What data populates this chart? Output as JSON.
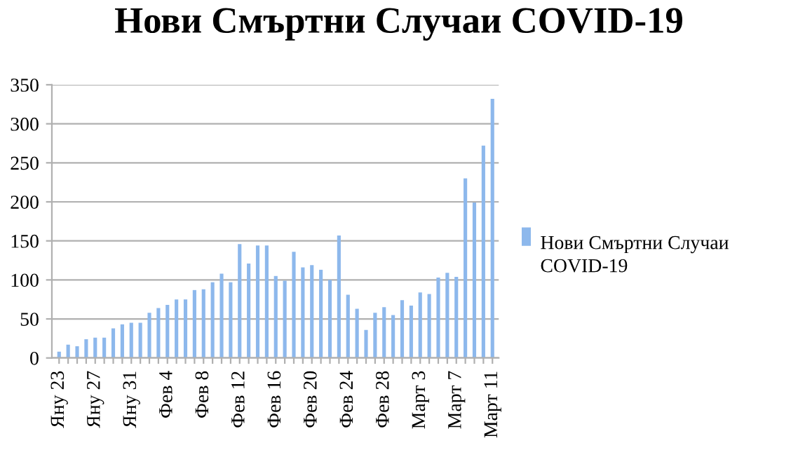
{
  "chart_data": {
    "type": "bar",
    "title": "Нови Смъртни Случаи COVID-19",
    "categories": [
      "Яну 23",
      null,
      null,
      null,
      "Яну 27",
      null,
      null,
      null,
      "Яну 31",
      null,
      null,
      null,
      "Фев 4",
      null,
      null,
      null,
      "Фев 8",
      null,
      null,
      null,
      "Фев 12",
      null,
      null,
      null,
      "Фев 16",
      null,
      null,
      null,
      "Фев 20",
      null,
      null,
      null,
      "Фев 24",
      null,
      null,
      null,
      "Фев 28",
      null,
      null,
      null,
      "Март 3",
      null,
      null,
      null,
      "Март 7",
      null,
      null,
      null,
      "Март 11"
    ],
    "series": [
      {
        "name": "Нови Смъртни Случаи COVID-19",
        "color": "#8db8ec",
        "values": [
          8,
          17,
          15,
          24,
          26,
          26,
          38,
          43,
          45,
          45,
          58,
          64,
          68,
          75,
          75,
          87,
          88,
          97,
          108,
          97,
          146,
          121,
          144,
          144,
          105,
          99,
          136,
          116,
          119,
          113,
          100,
          157,
          81,
          63,
          36,
          58,
          65,
          55,
          74,
          67,
          84,
          82,
          103,
          109,
          104,
          230,
          199,
          272,
          332
        ]
      }
    ],
    "ylim": [
      0,
      350
    ],
    "yticks": [
      0,
      50,
      100,
      150,
      200,
      250,
      300,
      350
    ],
    "grid": "y",
    "legend": "right"
  }
}
